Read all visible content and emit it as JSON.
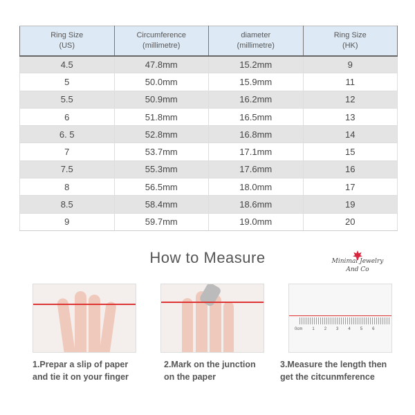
{
  "table": {
    "headers": [
      [
        "Ring Size",
        "(US)"
      ],
      [
        "Circumference",
        "(millimetre)"
      ],
      [
        "diameter",
        "(millimetre)"
      ],
      [
        "Ring Size",
        "(HK)"
      ]
    ],
    "rows": [
      [
        "4.5",
        "47.8mm",
        "15.2mm",
        "9"
      ],
      [
        "5",
        "50.0mm",
        "15.9mm",
        "11"
      ],
      [
        "5.5",
        "50.9mm",
        "16.2mm",
        "12"
      ],
      [
        "6",
        "51.8mm",
        "16.5mm",
        "13"
      ],
      [
        "6. 5",
        "52.8mm",
        "16.8mm",
        "14"
      ],
      [
        "7",
        "53.7mm",
        "17.1mm",
        "15"
      ],
      [
        "7.5",
        "55.3mm",
        "17.6mm",
        "16"
      ],
      [
        "8",
        "56.5mm",
        "18.0mm",
        "17"
      ],
      [
        "8.5",
        "58.4mm",
        "18.6mm",
        "19"
      ],
      [
        "9",
        "59.7mm",
        "19.0mm",
        "20"
      ]
    ]
  },
  "section_title": "How to Measure",
  "logo": {
    "line1": "Minimal Jewelry",
    "line2": "And Co"
  },
  "steps": [
    {
      "line1": "1.Prepar a slip of paper",
      "line2": "and tie it on your finger"
    },
    {
      "line1": "2.Mark on the junction",
      "line2": "on the paper"
    },
    {
      "line1": "3.Measure the length then",
      "line2": "get the citcunmference"
    }
  ],
  "ruler": {
    "unit": "0cm",
    "ticks": [
      "1",
      "2",
      "3",
      "4",
      "5",
      "6"
    ]
  },
  "colors": {
    "header_bg": "#dde9f5",
    "row_alt": "#e4e4e4",
    "string": "#dd3333"
  }
}
